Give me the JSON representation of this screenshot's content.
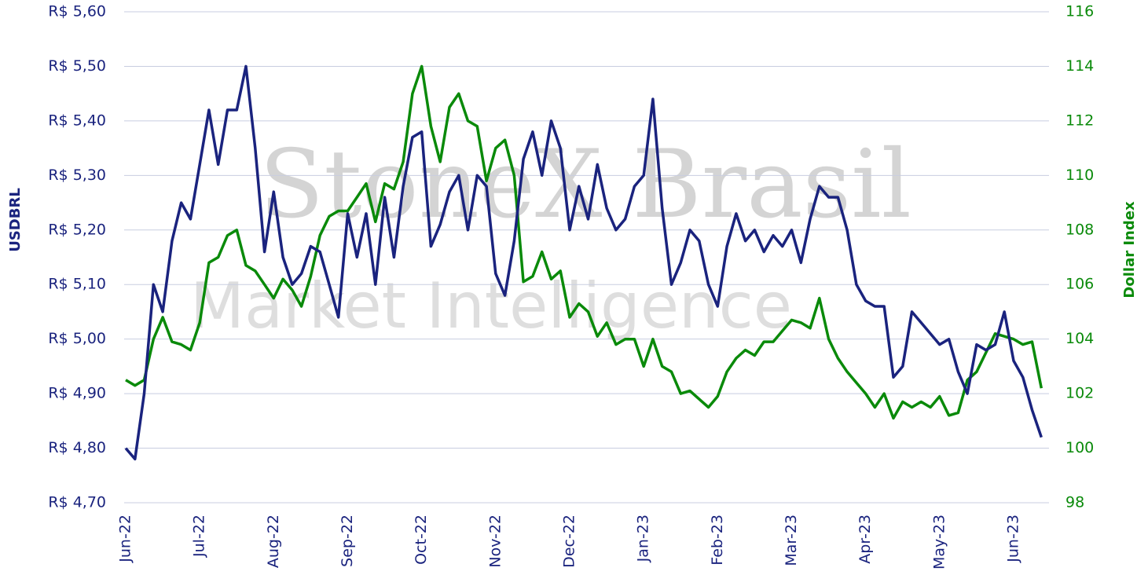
{
  "chart_data": {
    "type": "line",
    "watermark": [
      "StoneX Brasil",
      "Market Intelligence"
    ],
    "ylabel": "USDBRL",
    "y2label": "Dollar Index",
    "categories": [
      "Jun-22",
      null,
      null,
      null,
      null,
      null,
      null,
      null,
      "Jul-22",
      null,
      null,
      null,
      null,
      null,
      null,
      null,
      "Aug-22",
      null,
      null,
      null,
      null,
      null,
      null,
      null,
      "Sep-22",
      null,
      null,
      null,
      null,
      null,
      null,
      null,
      "Oct-22",
      null,
      null,
      null,
      null,
      null,
      null,
      null,
      "Nov-22",
      null,
      null,
      null,
      null,
      null,
      null,
      null,
      "Dec-22",
      null,
      null,
      null,
      null,
      null,
      null,
      null,
      "Jan-23",
      null,
      null,
      null,
      null,
      null,
      null,
      null,
      "Feb-23",
      null,
      null,
      null,
      null,
      null,
      null,
      null,
      "Mar-23",
      null,
      null,
      null,
      null,
      null,
      null,
      null,
      "Apr-23",
      null,
      null,
      null,
      null,
      null,
      null,
      null,
      "May-23",
      null,
      null,
      null,
      null,
      null,
      null,
      null,
      "Jun-23",
      null,
      null,
      null
    ],
    "series": [
      {
        "name": "USDBRL",
        "color": "#1a237e",
        "axis": "y",
        "values": [
          4.8,
          4.78,
          4.9,
          5.1,
          5.05,
          5.18,
          5.25,
          5.22,
          5.32,
          5.42,
          5.32,
          5.42,
          5.42,
          5.5,
          5.35,
          5.16,
          5.27,
          5.15,
          5.1,
          5.12,
          5.17,
          5.16,
          5.1,
          5.04,
          5.23,
          5.15,
          5.23,
          5.1,
          5.26,
          5.15,
          5.28,
          5.37,
          5.38,
          5.17,
          5.21,
          5.27,
          5.3,
          5.2,
          5.3,
          5.28,
          5.12,
          5.08,
          5.18,
          5.33,
          5.38,
          5.3,
          5.4,
          5.35,
          5.2,
          5.28,
          5.22,
          5.32,
          5.24,
          5.2,
          5.22,
          5.28,
          5.3,
          5.44,
          5.24,
          5.1,
          5.14,
          5.2,
          5.18,
          5.1,
          5.06,
          5.17,
          5.23,
          5.18,
          5.2,
          5.16,
          5.19,
          5.17,
          5.2,
          5.14,
          5.22,
          5.28,
          5.26,
          5.26,
          5.2,
          5.1,
          5.07,
          5.06,
          5.06,
          4.93,
          4.95,
          5.05,
          5.03,
          5.01,
          4.99,
          5.0,
          4.94,
          4.9,
          4.99,
          4.98,
          4.99,
          5.05,
          4.96,
          4.93,
          4.87,
          4.82
        ]
      },
      {
        "name": "Dollar Index",
        "color": "#0a8a0a",
        "axis": "y2",
        "values": [
          102.5,
          102.3,
          102.5,
          104.0,
          104.8,
          103.9,
          103.8,
          103.6,
          104.6,
          106.8,
          107.0,
          107.8,
          108.0,
          106.7,
          106.5,
          106.0,
          105.5,
          106.2,
          105.8,
          105.2,
          106.3,
          107.8,
          108.5,
          108.7,
          108.7,
          109.2,
          109.7,
          108.3,
          109.7,
          109.5,
          110.5,
          113.0,
          114.0,
          111.8,
          110.5,
          112.5,
          113.0,
          112.0,
          111.8,
          109.8,
          111.0,
          111.3,
          110.0,
          106.1,
          106.3,
          107.2,
          106.2,
          106.5,
          104.8,
          105.3,
          105.0,
          104.1,
          104.6,
          103.8,
          104.0,
          104.0,
          103.0,
          104.0,
          103.0,
          102.8,
          102.0,
          102.1,
          101.8,
          101.5,
          101.9,
          102.8,
          103.3,
          103.6,
          103.4,
          103.9,
          103.9,
          104.3,
          104.7,
          104.6,
          104.4,
          105.5,
          104.0,
          103.3,
          102.8,
          102.4,
          102.0,
          101.5,
          102.0,
          101.1,
          101.7,
          101.5,
          101.7,
          101.5,
          101.9,
          101.2,
          101.3,
          102.5,
          102.8,
          103.5,
          104.2,
          104.1,
          104.0,
          103.8,
          103.9,
          102.2
        ]
      }
    ],
    "ylim": [
      4.7,
      5.6
    ],
    "yticks": [
      {
        "value": 4.7,
        "label": "R$ 4,70"
      },
      {
        "value": 4.8,
        "label": "R$ 4,80"
      },
      {
        "value": 4.9,
        "label": "R$ 4,90"
      },
      {
        "value": 5.0,
        "label": "R$ 5,00"
      },
      {
        "value": 5.1,
        "label": "R$ 5,10"
      },
      {
        "value": 5.2,
        "label": "R$ 5,20"
      },
      {
        "value": 5.3,
        "label": "R$ 5,30"
      },
      {
        "value": 5.4,
        "label": "R$ 5,40"
      },
      {
        "value": 5.5,
        "label": "R$ 5,50"
      },
      {
        "value": 5.6,
        "label": "R$ 5,60"
      }
    ],
    "y2lim": [
      98,
      116
    ],
    "y2ticks": [
      98,
      100,
      102,
      104,
      106,
      108,
      110,
      112,
      114,
      116
    ],
    "grid": true
  }
}
